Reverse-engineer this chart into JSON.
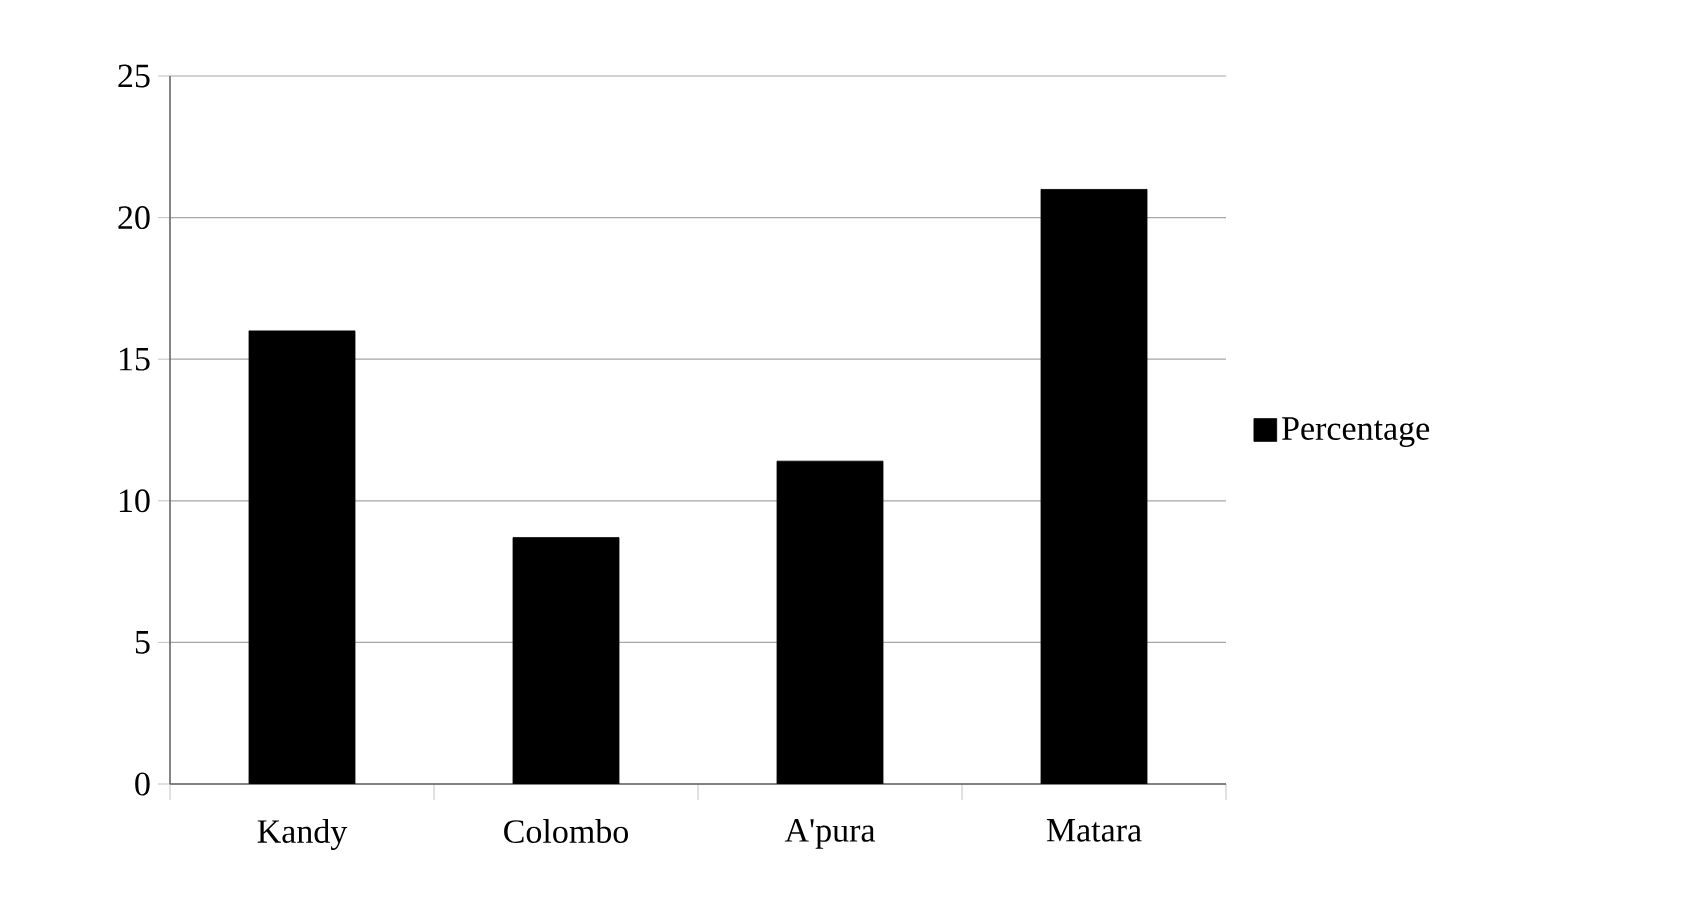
{
  "chart_data": {
    "type": "bar",
    "categories": [
      "Kandy",
      "Colombo",
      "A'pura",
      "Matara"
    ],
    "series": [
      {
        "name": "Percentage",
        "color": "#000000",
        "values": [
          16,
          8.7,
          11.4,
          21
        ]
      }
    ],
    "ylim": [
      0,
      25
    ],
    "yticks": [
      0,
      5,
      10,
      15,
      20,
      25
    ],
    "grid": "y",
    "legend": "right"
  }
}
